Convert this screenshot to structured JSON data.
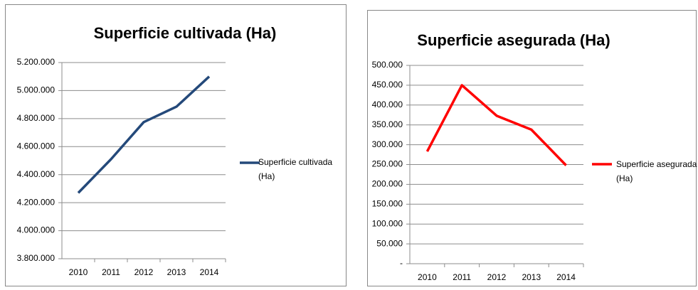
{
  "chart_data": [
    {
      "type": "line",
      "title": "Superficie cultivada (Ha)",
      "categories": [
        "2010",
        "2011",
        "2012",
        "2013",
        "2014"
      ],
      "series": [
        {
          "name": "Superficie cultivada (Ha)",
          "color": "#24497a",
          "values": [
            4270000,
            4510000,
            4775000,
            4885000,
            5100000
          ]
        }
      ],
      "ylim": [
        3800000,
        5200000
      ],
      "yticks": [
        {
          "value": 3800000,
          "label": "3.800.000"
        },
        {
          "value": 4000000,
          "label": "4.000.000"
        },
        {
          "value": 4200000,
          "label": "4.200.000"
        },
        {
          "value": 4400000,
          "label": "4.400.000"
        },
        {
          "value": 4600000,
          "label": "4.600.000"
        },
        {
          "value": 4800000,
          "label": "4.800.000"
        },
        {
          "value": 5000000,
          "label": "5.000.000"
        },
        {
          "value": 5200000,
          "label": "5.200.000"
        }
      ],
      "grid": true,
      "legend": "right"
    },
    {
      "type": "line",
      "title": "Superficie asegurada (Ha)",
      "categories": [
        "2010",
        "2011",
        "2012",
        "2013",
        "2014"
      ],
      "series": [
        {
          "name": "Superficie asegurada (Ha)",
          "color": "#ff0000",
          "values": [
            283000,
            450000,
            373000,
            338000,
            248000
          ]
        }
      ],
      "ylim": [
        0,
        500000
      ],
      "yticks": [
        {
          "value": 0,
          "label": "-"
        },
        {
          "value": 50000,
          "label": "50.000"
        },
        {
          "value": 100000,
          "label": "100.000"
        },
        {
          "value": 150000,
          "label": "150.000"
        },
        {
          "value": 200000,
          "label": "200.000"
        },
        {
          "value": 250000,
          "label": "250.000"
        },
        {
          "value": 300000,
          "label": "300.000"
        },
        {
          "value": 350000,
          "label": "350.000"
        },
        {
          "value": 400000,
          "label": "400.000"
        },
        {
          "value": 450000,
          "label": "450.000"
        },
        {
          "value": 500000,
          "label": "500.000"
        }
      ],
      "grid": true,
      "legend": "right"
    }
  ]
}
